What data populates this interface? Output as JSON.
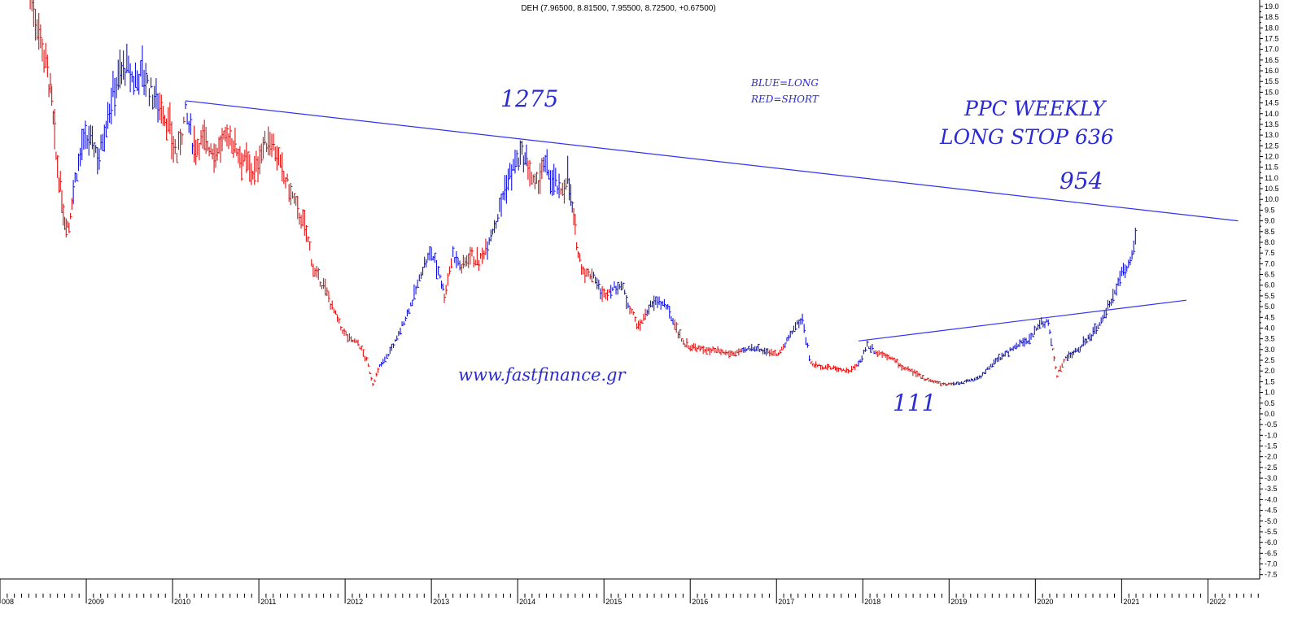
{
  "chart_data": {
    "type": "ohlc-bar",
    "header": "DEH (7.96500, 8.81500, 7.95500, 8.72500, +0.67500)",
    "ylim": [
      -7.7,
      19.3
    ],
    "y_ticks": [
      19.0,
      18.5,
      18.0,
      17.5,
      17.0,
      16.5,
      16.0,
      15.5,
      15.0,
      14.5,
      14.0,
      13.5,
      13.0,
      12.5,
      12.0,
      11.5,
      11.0,
      10.5,
      10.0,
      9.5,
      9.0,
      8.5,
      8.0,
      7.5,
      7.0,
      6.5,
      6.0,
      5.5,
      5.0,
      4.5,
      4.0,
      3.5,
      3.0,
      2.5,
      2.0,
      1.5,
      1.0,
      0.5,
      0.0,
      -0.5,
      -1.0,
      -1.5,
      -2.0,
      -2.5,
      -3.0,
      -3.5,
      -4.0,
      -4.5,
      -5.0,
      -5.5,
      -6.0,
      -6.5,
      -7.0,
      -7.5
    ],
    "xlim": [
      2008.0,
      2022.6
    ],
    "year_labels": [
      "008",
      "2009",
      "2010",
      "2011",
      "2012",
      "2013",
      "2014",
      "2015",
      "2016",
      "2017",
      "2018",
      "2019",
      "2020",
      "2021",
      "2022"
    ],
    "colors": {
      "long": "#1010e0",
      "short": "#e01010",
      "trendline": "#3333ee",
      "annotation": "#2b2bd6"
    },
    "series": [
      {
        "color": "long_short",
        "points": [
          [
            2008.35,
            19.5,
            "short"
          ],
          [
            2008.45,
            18.0,
            "short"
          ],
          [
            2008.55,
            16.0,
            "short"
          ],
          [
            2008.6,
            14.5,
            "short"
          ],
          [
            2008.65,
            12.0,
            "short"
          ],
          [
            2008.7,
            10.5,
            "short"
          ],
          [
            2008.75,
            9.0,
            "short"
          ],
          [
            2008.8,
            8.8,
            "short"
          ],
          [
            2008.85,
            10.5,
            "long"
          ],
          [
            2008.95,
            12.5,
            "long"
          ],
          [
            2009.05,
            12.8,
            "long"
          ],
          [
            2009.15,
            12.0,
            "long"
          ],
          [
            2009.25,
            14.0,
            "long"
          ],
          [
            2009.35,
            15.5,
            "long"
          ],
          [
            2009.45,
            16.2,
            "long"
          ],
          [
            2009.55,
            15.5,
            "long"
          ],
          [
            2009.65,
            16.0,
            "long"
          ],
          [
            2009.75,
            15.0,
            "long"
          ],
          [
            2009.85,
            14.5,
            "short"
          ],
          [
            2009.95,
            13.5,
            "short"
          ],
          [
            2010.05,
            12.0,
            "short"
          ],
          [
            2010.15,
            14.0,
            "long"
          ],
          [
            2010.25,
            12.5,
            "short"
          ],
          [
            2010.35,
            12.8,
            "short"
          ],
          [
            2010.5,
            12.2,
            "short"
          ],
          [
            2010.65,
            13.0,
            "short"
          ],
          [
            2010.8,
            12.0,
            "short"
          ],
          [
            2010.95,
            11.2,
            "short"
          ],
          [
            2011.05,
            12.5,
            "short"
          ],
          [
            2011.15,
            12.8,
            "short"
          ],
          [
            2011.25,
            11.5,
            "short"
          ],
          [
            2011.35,
            10.5,
            "short"
          ],
          [
            2011.45,
            9.5,
            "short"
          ],
          [
            2011.55,
            8.5,
            "short"
          ],
          [
            2011.65,
            6.5,
            "short"
          ],
          [
            2011.75,
            6.0,
            "short"
          ],
          [
            2011.85,
            5.0,
            "short"
          ],
          [
            2011.95,
            4.0,
            "short"
          ],
          [
            2012.05,
            3.5,
            "short"
          ],
          [
            2012.15,
            3.3,
            "short"
          ],
          [
            2012.25,
            2.5,
            "short"
          ],
          [
            2012.32,
            1.4,
            "short"
          ],
          [
            2012.4,
            2.2,
            "long"
          ],
          [
            2012.5,
            2.8,
            "long"
          ],
          [
            2012.6,
            3.5,
            "long"
          ],
          [
            2012.7,
            4.5,
            "long"
          ],
          [
            2012.8,
            5.5,
            "long"
          ],
          [
            2012.9,
            6.8,
            "long"
          ],
          [
            2013.0,
            7.5,
            "long"
          ],
          [
            2013.1,
            6.5,
            "long"
          ],
          [
            2013.15,
            5.5,
            "short"
          ],
          [
            2013.25,
            7.5,
            "long"
          ],
          [
            2013.35,
            6.8,
            "short"
          ],
          [
            2013.45,
            7.5,
            "short"
          ],
          [
            2013.55,
            7.0,
            "short"
          ],
          [
            2013.65,
            8.0,
            "long"
          ],
          [
            2013.75,
            9.0,
            "long"
          ],
          [
            2013.85,
            10.5,
            "long"
          ],
          [
            2013.95,
            11.5,
            "long"
          ],
          [
            2014.05,
            12.0,
            "long"
          ],
          [
            2014.12,
            11.5,
            "short"
          ],
          [
            2014.2,
            10.5,
            "short"
          ],
          [
            2014.3,
            11.5,
            "long"
          ],
          [
            2014.4,
            11.0,
            "long"
          ],
          [
            2014.5,
            10.2,
            "short"
          ],
          [
            2014.58,
            11.2,
            "long"
          ],
          [
            2014.65,
            9.0,
            "short"
          ],
          [
            2014.7,
            7.5,
            "short"
          ],
          [
            2014.78,
            6.5,
            "short"
          ],
          [
            2014.88,
            6.5,
            "long"
          ],
          [
            2014.98,
            5.5,
            "short"
          ],
          [
            2015.08,
            5.8,
            "long"
          ],
          [
            2015.2,
            6.0,
            "long"
          ],
          [
            2015.3,
            5.0,
            "short"
          ],
          [
            2015.4,
            4.0,
            "short"
          ],
          [
            2015.5,
            4.8,
            "long"
          ],
          [
            2015.62,
            5.3,
            "long"
          ],
          [
            2015.72,
            5.0,
            "long"
          ],
          [
            2015.82,
            4.2,
            "short"
          ],
          [
            2015.92,
            3.3,
            "short"
          ],
          [
            2016.02,
            3.1,
            "short"
          ],
          [
            2016.15,
            3.0,
            "short"
          ],
          [
            2016.3,
            2.9,
            "short"
          ],
          [
            2016.45,
            2.8,
            "short"
          ],
          [
            2016.6,
            2.9,
            "long"
          ],
          [
            2016.75,
            3.1,
            "long"
          ],
          [
            2016.9,
            2.9,
            "short"
          ],
          [
            2017.0,
            2.8,
            "short"
          ],
          [
            2017.1,
            3.2,
            "long"
          ],
          [
            2017.2,
            4.0,
            "long"
          ],
          [
            2017.3,
            4.4,
            "long"
          ],
          [
            2017.4,
            2.3,
            "short"
          ],
          [
            2017.55,
            2.2,
            "short"
          ],
          [
            2017.7,
            2.1,
            "short"
          ],
          [
            2017.85,
            2.0,
            "short"
          ],
          [
            2017.95,
            2.3,
            "long"
          ],
          [
            2018.05,
            3.2,
            "long"
          ],
          [
            2018.15,
            2.9,
            "short"
          ],
          [
            2018.3,
            2.7,
            "short"
          ],
          [
            2018.45,
            2.2,
            "short"
          ],
          [
            2018.6,
            1.9,
            "short"
          ],
          [
            2018.75,
            1.6,
            "short"
          ],
          [
            2018.9,
            1.4,
            "short"
          ],
          [
            2019.05,
            1.4,
            "long"
          ],
          [
            2019.2,
            1.5,
            "long"
          ],
          [
            2019.35,
            1.7,
            "long"
          ],
          [
            2019.5,
            2.3,
            "long"
          ],
          [
            2019.65,
            2.8,
            "long"
          ],
          [
            2019.8,
            3.2,
            "long"
          ],
          [
            2019.95,
            3.5,
            "long"
          ],
          [
            2020.05,
            4.3,
            "long"
          ],
          [
            2020.15,
            4.2,
            "long"
          ],
          [
            2020.2,
            3.0,
            "short"
          ],
          [
            2020.25,
            1.8,
            "short"
          ],
          [
            2020.35,
            2.6,
            "long"
          ],
          [
            2020.5,
            3.0,
            "long"
          ],
          [
            2020.65,
            3.7,
            "long"
          ],
          [
            2020.8,
            4.5,
            "long"
          ],
          [
            2020.9,
            5.5,
            "long"
          ],
          [
            2021.0,
            6.5,
            "long"
          ],
          [
            2021.1,
            7.2,
            "long"
          ],
          [
            2021.18,
            8.5,
            "long"
          ]
        ]
      }
    ],
    "trendlines": [
      {
        "from": [
          2010.15,
          14.6
        ],
        "to": [
          2022.35,
          9.0
        ]
      },
      {
        "from": [
          2017.95,
          3.4
        ],
        "to": [
          2021.75,
          5.3
        ]
      }
    ],
    "annotations": {
      "peak": "1275",
      "legend_long": "BLUE=LONG",
      "legend_short": "RED=SHORT",
      "title_line1": "PPC WEEKLY",
      "title_line2": "LONG STOP 636",
      "target": "954",
      "website": "www.fastfinance.gr",
      "low": "111"
    }
  }
}
